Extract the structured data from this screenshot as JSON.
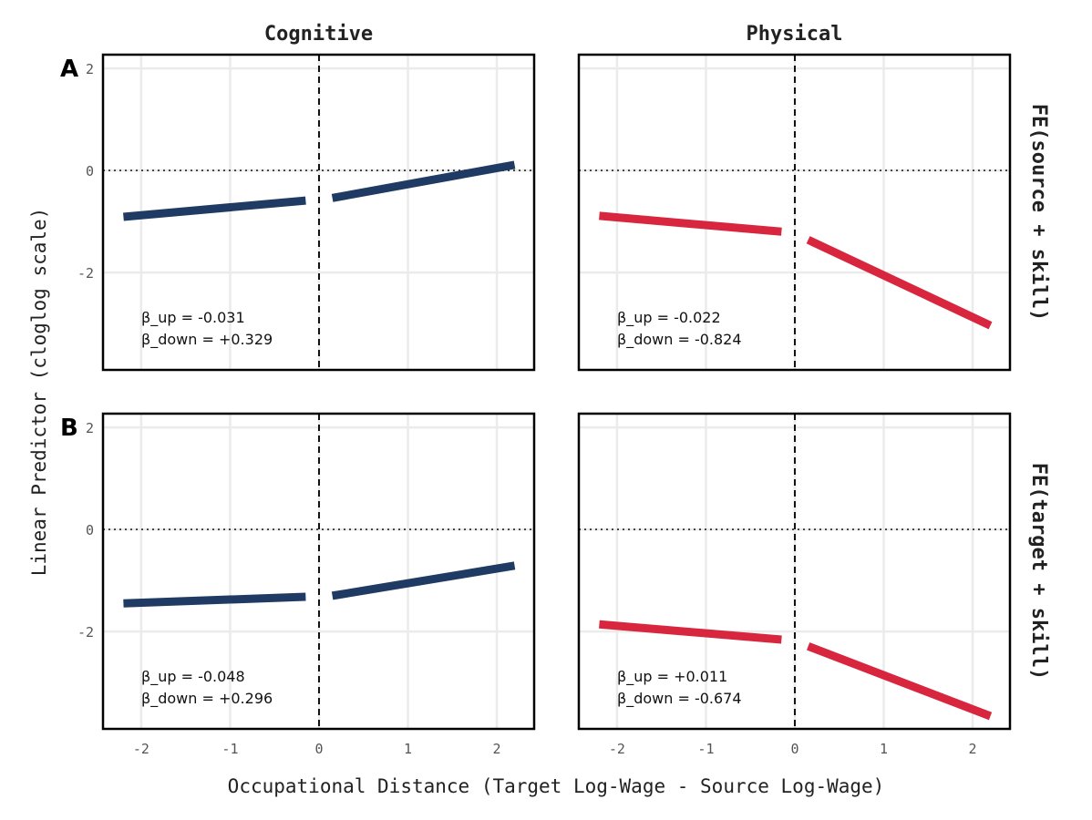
{
  "chart_data": {
    "type": "line",
    "xlabel": "Occupational Distance (Target Log-Wage - Source Log-Wage)",
    "ylabel": "Linear Predictor (cloglog scale)",
    "xlim": [
      -2.43,
      2.42
    ],
    "ylim": [
      -3.91,
      2.27
    ],
    "x_ticks": [
      -2,
      -1,
      0,
      1,
      2
    ],
    "y_ticks": [
      -2,
      0,
      2
    ],
    "grid": true,
    "columns": [
      "Cognitive",
      "Physical"
    ],
    "rows": [
      {
        "tag": "A",
        "strip": "FE(source + skill)"
      },
      {
        "tag": "B",
        "strip": "FE(target + skill)"
      }
    ],
    "colors": {
      "Cognitive": "#1f3a63",
      "Physical": "#d7263d"
    },
    "panels": [
      {
        "row": 0,
        "col": 0,
        "annotation": [
          "β_up = -0.031",
          "β_down = +0.329"
        ],
        "segments": [
          {
            "x": [
              -2.2,
              -0.15
            ],
            "y": [
              -0.91,
              -0.59
            ]
          },
          {
            "x": [
              0.15,
              2.2
            ],
            "y": [
              -0.54,
              0.11
            ]
          }
        ]
      },
      {
        "row": 0,
        "col": 1,
        "annotation": [
          "β_up = -0.022",
          "β_down = -0.824"
        ],
        "segments": [
          {
            "x": [
              -2.2,
              -0.15
            ],
            "y": [
              -0.89,
              -1.2
            ]
          },
          {
            "x": [
              0.15,
              2.2
            ],
            "y": [
              -1.36,
              -3.04
            ]
          }
        ]
      },
      {
        "row": 1,
        "col": 0,
        "annotation": [
          "β_up = -0.048",
          "β_down = +0.296"
        ],
        "segments": [
          {
            "x": [
              -2.2,
              -0.15
            ],
            "y": [
              -1.45,
              -1.32
            ]
          },
          {
            "x": [
              0.15,
              2.2
            ],
            "y": [
              -1.3,
              -0.71
            ]
          }
        ]
      },
      {
        "row": 1,
        "col": 1,
        "annotation": [
          "β_up = +0.011",
          "β_down = -0.674"
        ],
        "segments": [
          {
            "x": [
              -2.2,
              -0.15
            ],
            "y": [
              -1.86,
              -2.16
            ]
          },
          {
            "x": [
              0.15,
              2.2
            ],
            "y": [
              -2.29,
              -3.66
            ]
          }
        ]
      }
    ]
  }
}
